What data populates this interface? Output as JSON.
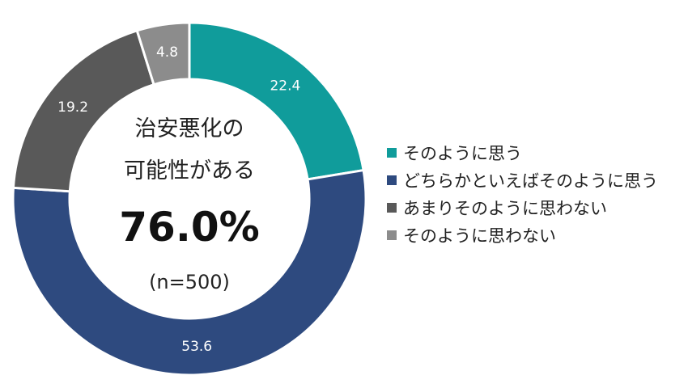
{
  "chart_data": {
    "type": "pie",
    "categories": [
      "そのように思う",
      "どちらかといえばそのように思う",
      "あまりそのように思わない",
      "そのように思わない"
    ],
    "values": [
      22.4,
      53.6,
      19.2,
      4.8
    ],
    "value_labels": [
      "22.4",
      "53.6",
      "19.2",
      "4.8"
    ],
    "colors": [
      "#109c9b",
      "#2e4a7f",
      "#595959",
      "#8c8c8c"
    ],
    "donut": true,
    "legend": "right"
  },
  "center": {
    "line1": "治安悪化の",
    "line2": "可能性がある",
    "value": "76.0%",
    "note": "(n=500)"
  }
}
